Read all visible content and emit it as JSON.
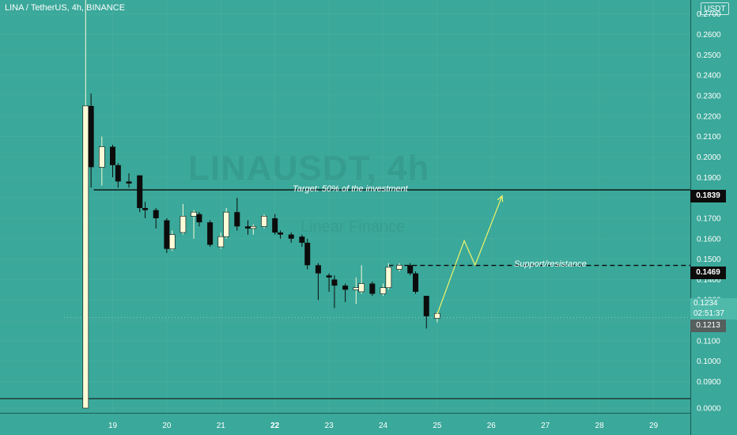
{
  "header": {
    "symbol_title": "LINA / TetherUS, 4h, BINANCE",
    "currency_badge": "USDT"
  },
  "watermark": {
    "main": "LINAUSDT, 4h",
    "sub": "Linear Finance"
  },
  "annotations": {
    "target_label": "Target: 50% of the investment",
    "support_label": "Support/resistance"
  },
  "price_tags": {
    "target": "0.1839",
    "support": "0.1469",
    "current_price": "0.1234",
    "countdown": "02:51:37",
    "last_line": "0.1213"
  },
  "colors": {
    "background": "#3aa89a",
    "up_candle": "#fcfbd8",
    "down_candle": "#0c0c0c",
    "projection": "#f2f56a",
    "tag_dark": "#0c0c0c"
  },
  "chart_data": {
    "type": "candlestick",
    "title": "LINA / TetherUS, 4h, BINANCE",
    "xlabel": "",
    "ylabel": "",
    "ylim": [
      0.0,
      0.28
    ],
    "x_ticks": [
      "19",
      "20",
      "21",
      "22",
      "23",
      "24",
      "25",
      "26",
      "27",
      "28",
      "29"
    ],
    "y_ticks": [
      "0.0000",
      "0.0900",
      "0.1000",
      "0.1100",
      "0.1200",
      "0.1300",
      "0.1400",
      "0.1500",
      "0.1600",
      "0.1700",
      "0.1800",
      "0.1900",
      "0.2000",
      "0.2100",
      "0.2200",
      "0.2300",
      "0.2400",
      "0.2500",
      "0.2600",
      "0.2700"
    ],
    "x_range_days": [
      18.1,
      29.6
    ],
    "candles": [
      {
        "t": 18.5,
        "o": 0.085,
        "h": 0.28,
        "l": 0.085,
        "c": 0.225
      },
      {
        "t": 18.6,
        "o": 0.225,
        "h": 0.231,
        "l": 0.185,
        "c": 0.195
      },
      {
        "t": 18.8,
        "o": 0.195,
        "h": 0.21,
        "l": 0.186,
        "c": 0.205
      },
      {
        "t": 19.0,
        "o": 0.205,
        "h": 0.206,
        "l": 0.19,
        "c": 0.196
      },
      {
        "t": 19.1,
        "o": 0.196,
        "h": 0.197,
        "l": 0.185,
        "c": 0.188
      },
      {
        "t": 19.3,
        "o": 0.188,
        "h": 0.192,
        "l": 0.185,
        "c": 0.187
      },
      {
        "t": 19.5,
        "o": 0.191,
        "h": 0.191,
        "l": 0.173,
        "c": 0.175
      },
      {
        "t": 19.6,
        "o": 0.175,
        "h": 0.178,
        "l": 0.17,
        "c": 0.174
      },
      {
        "t": 19.8,
        "o": 0.174,
        "h": 0.175,
        "l": 0.165,
        "c": 0.17
      },
      {
        "t": 20.0,
        "o": 0.169,
        "h": 0.17,
        "l": 0.153,
        "c": 0.155
      },
      {
        "t": 20.1,
        "o": 0.155,
        "h": 0.164,
        "l": 0.154,
        "c": 0.162
      },
      {
        "t": 20.3,
        "o": 0.163,
        "h": 0.177,
        "l": 0.162,
        "c": 0.171
      },
      {
        "t": 20.5,
        "o": 0.171,
        "h": 0.174,
        "l": 0.16,
        "c": 0.173
      },
      {
        "t": 20.6,
        "o": 0.172,
        "h": 0.173,
        "l": 0.166,
        "c": 0.168
      },
      {
        "t": 20.8,
        "o": 0.168,
        "h": 0.169,
        "l": 0.156,
        "c": 0.157
      },
      {
        "t": 21.0,
        "o": 0.156,
        "h": 0.163,
        "l": 0.155,
        "c": 0.161
      },
      {
        "t": 21.1,
        "o": 0.161,
        "h": 0.175,
        "l": 0.16,
        "c": 0.173
      },
      {
        "t": 21.3,
        "o": 0.173,
        "h": 0.18,
        "l": 0.164,
        "c": 0.166
      },
      {
        "t": 21.5,
        "o": 0.166,
        "h": 0.169,
        "l": 0.162,
        "c": 0.165
      },
      {
        "t": 21.6,
        "o": 0.165,
        "h": 0.167,
        "l": 0.162,
        "c": 0.166
      },
      {
        "t": 21.8,
        "o": 0.166,
        "h": 0.172,
        "l": 0.165,
        "c": 0.171
      },
      {
        "t": 22.0,
        "o": 0.17,
        "h": 0.172,
        "l": 0.162,
        "c": 0.163
      },
      {
        "t": 22.1,
        "o": 0.163,
        "h": 0.164,
        "l": 0.16,
        "c": 0.162
      },
      {
        "t": 22.3,
        "o": 0.162,
        "h": 0.163,
        "l": 0.158,
        "c": 0.16
      },
      {
        "t": 22.5,
        "o": 0.161,
        "h": 0.162,
        "l": 0.156,
        "c": 0.158
      },
      {
        "t": 22.6,
        "o": 0.158,
        "h": 0.16,
        "l": 0.145,
        "c": 0.147
      },
      {
        "t": 22.8,
        "o": 0.147,
        "h": 0.148,
        "l": 0.13,
        "c": 0.143
      },
      {
        "t": 23.0,
        "o": 0.142,
        "h": 0.143,
        "l": 0.134,
        "c": 0.141
      },
      {
        "t": 23.1,
        "o": 0.14,
        "h": 0.142,
        "l": 0.126,
        "c": 0.137
      },
      {
        "t": 23.3,
        "o": 0.137,
        "h": 0.138,
        "l": 0.129,
        "c": 0.135
      },
      {
        "t": 23.5,
        "o": 0.135,
        "h": 0.141,
        "l": 0.128,
        "c": 0.136
      },
      {
        "t": 23.6,
        "o": 0.134,
        "h": 0.147,
        "l": 0.133,
        "c": 0.138
      },
      {
        "t": 23.8,
        "o": 0.138,
        "h": 0.139,
        "l": 0.132,
        "c": 0.133
      },
      {
        "t": 24.0,
        "o": 0.133,
        "h": 0.138,
        "l": 0.132,
        "c": 0.136
      },
      {
        "t": 24.1,
        "o": 0.136,
        "h": 0.148,
        "l": 0.135,
        "c": 0.146
      },
      {
        "t": 24.3,
        "o": 0.145,
        "h": 0.148,
        "l": 0.144,
        "c": 0.147
      },
      {
        "t": 24.5,
        "o": 0.147,
        "h": 0.148,
        "l": 0.142,
        "c": 0.143
      },
      {
        "t": 24.6,
        "o": 0.143,
        "h": 0.144,
        "l": 0.133,
        "c": 0.134
      },
      {
        "t": 24.8,
        "o": 0.132,
        "h": 0.132,
        "l": 0.116,
        "c": 0.122
      },
      {
        "t": 25.0,
        "o": 0.121,
        "h": 0.124,
        "l": 0.119,
        "c": 0.1234
      }
    ],
    "horizontal_lines": [
      {
        "name": "target",
        "price": 0.1839,
        "style": "solid",
        "from_t": 18.65
      },
      {
        "name": "support",
        "price": 0.1469,
        "style": "dashed",
        "from_t": 24.1
      },
      {
        "name": "last",
        "price": 0.1213,
        "style": "dotted",
        "from_t": 18.1
      }
    ],
    "projection_path": [
      {
        "t": 25.0,
        "p": 0.123
      },
      {
        "t": 25.5,
        "p": 0.159
      },
      {
        "t": 25.7,
        "p": 0.147
      },
      {
        "t": 26.2,
        "p": 0.181
      }
    ],
    "grid": true,
    "legend": "none"
  }
}
